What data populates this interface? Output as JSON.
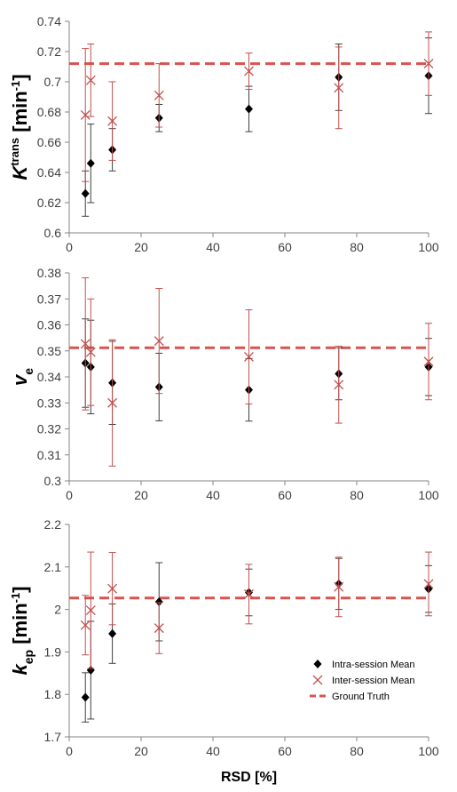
{
  "chart_data": [
    {
      "type": "scatter",
      "ylabel": {
        "main": "K",
        "sup": "trans",
        "unit": " [min",
        "unit_sup": "-1",
        "close": "]"
      },
      "xlabel": "",
      "xlim": [
        0,
        100
      ],
      "ylim": [
        0.6,
        0.74
      ],
      "xticks": [
        0,
        20,
        40,
        60,
        80,
        100
      ],
      "xtick_labels": [
        "0",
        "20",
        "40",
        "60",
        "80",
        "100"
      ],
      "yticks": [
        0.6,
        0.62,
        0.64,
        0.66,
        0.68,
        0.7,
        0.72,
        0.74
      ],
      "ytick_labels": [
        "0.6",
        "0.62",
        "0.64",
        "0.66",
        "0.68",
        "0.7",
        "0.72",
        "0.74"
      ],
      "ground_truth": 0.712,
      "series": [
        {
          "name": "Intra-session Mean",
          "marker": "diamond",
          "color": "#000000",
          "err_color": "#404040",
          "x": [
            4.5,
            6,
            12,
            25,
            50,
            75,
            100
          ],
          "y": [
            0.626,
            0.646,
            0.655,
            0.676,
            0.682,
            0.703,
            0.704
          ],
          "err": [
            0.015,
            0.026,
            0.014,
            0.009,
            0.015,
            0.022,
            0.025
          ]
        },
        {
          "name": "Inter-session Mean",
          "marker": "x",
          "color": "#c0504d",
          "err_color": "#c0504d",
          "x": [
            4.5,
            6,
            12,
            25,
            50,
            75,
            100
          ],
          "y": [
            0.678,
            0.701,
            0.674,
            0.691,
            0.707,
            0.696,
            0.712
          ],
          "err": [
            0.044,
            0.024,
            0.026,
            0.021,
            0.012,
            0.027,
            0.021
          ]
        }
      ]
    },
    {
      "type": "scatter",
      "ylabel": {
        "main": "v",
        "sub": "e"
      },
      "xlabel": "",
      "xlim": [
        0,
        100
      ],
      "ylim": [
        0.3,
        0.38
      ],
      "xticks": [
        0,
        20,
        40,
        60,
        80,
        100
      ],
      "xtick_labels": [
        "0",
        "20",
        "40",
        "60",
        "80",
        "100"
      ],
      "yticks": [
        0.3,
        0.31,
        0.32,
        0.33,
        0.34,
        0.35,
        0.36,
        0.37,
        0.38
      ],
      "ytick_labels": [
        "0.3",
        "0.31",
        "0.32",
        "0.33",
        "0.34",
        "0.35",
        "0.36",
        "0.37",
        "0.38"
      ],
      "ground_truth": 0.3512,
      "series": [
        {
          "name": "Intra-session Mean",
          "marker": "diamond",
          "color": "#000000",
          "err_color": "#404040",
          "x": [
            4.5,
            6,
            12,
            25,
            50,
            75,
            100
          ],
          "y": [
            0.3453,
            0.3438,
            0.3377,
            0.3361,
            0.335,
            0.3412,
            0.3438
          ],
          "err": [
            0.017,
            0.018,
            0.016,
            0.013,
            0.012,
            0.01,
            0.011
          ]
        },
        {
          "name": "Inter-session Mean",
          "marker": "x",
          "color": "#c0504d",
          "err_color": "#c0504d",
          "x": [
            4.5,
            6,
            12,
            25,
            50,
            75,
            100
          ],
          "y": [
            0.3527,
            0.3495,
            0.33,
            0.3538,
            0.3477,
            0.337,
            0.3459
          ],
          "err": [
            0.0254,
            0.0205,
            0.0243,
            0.0202,
            0.0181,
            0.0148,
            0.0147
          ]
        }
      ]
    },
    {
      "type": "scatter",
      "ylabel": {
        "main": "k",
        "sub": "ep",
        "unit": " [min",
        "unit_sup": "-1",
        "close": "]"
      },
      "xlabel": "RSD [%]",
      "xlim": [
        0,
        100
      ],
      "ylim": [
        1.7,
        2.2
      ],
      "xticks": [
        0,
        20,
        40,
        60,
        80,
        100
      ],
      "xtick_labels": [
        "0",
        "20",
        "40",
        "60",
        "80",
        "100"
      ],
      "yticks": [
        1.7,
        1.8,
        1.9,
        2.0,
        2.1,
        2.2
      ],
      "ytick_labels": [
        "1.7",
        "1.8",
        "1.9",
        "2",
        "2.1",
        "2.2"
      ],
      "ground_truth": 2.027,
      "legend": "bottom-right",
      "series": [
        {
          "name": "Intra-session Mean",
          "marker": "diamond",
          "color": "#000000",
          "err_color": "#404040",
          "x": [
            4.5,
            6,
            12,
            25,
            50,
            75,
            100
          ],
          "y": [
            1.793,
            1.857,
            1.943,
            2.018,
            2.04,
            2.06,
            2.048
          ],
          "err": [
            0.058,
            0.115,
            0.07,
            0.092,
            0.055,
            0.06,
            0.055
          ]
        },
        {
          "name": "Inter-session Mean",
          "marker": "x",
          "color": "#c0504d",
          "err_color": "#c0504d",
          "x": [
            4.5,
            6,
            12,
            25,
            50,
            75,
            100
          ],
          "y": [
            1.963,
            1.998,
            2.049,
            1.956,
            2.036,
            2.053,
            2.06
          ],
          "err": [
            0.07,
            0.137,
            0.085,
            0.06,
            0.07,
            0.07,
            0.075
          ]
        }
      ],
      "legend_entries": [
        {
          "label": "Intra-session Mean",
          "marker": "diamond",
          "color": "#000000"
        },
        {
          "label": "Inter-session Mean",
          "marker": "x",
          "color": "#c0504d"
        },
        {
          "label": "Ground Truth",
          "marker": "dash",
          "color": "#d9534f"
        }
      ]
    }
  ]
}
